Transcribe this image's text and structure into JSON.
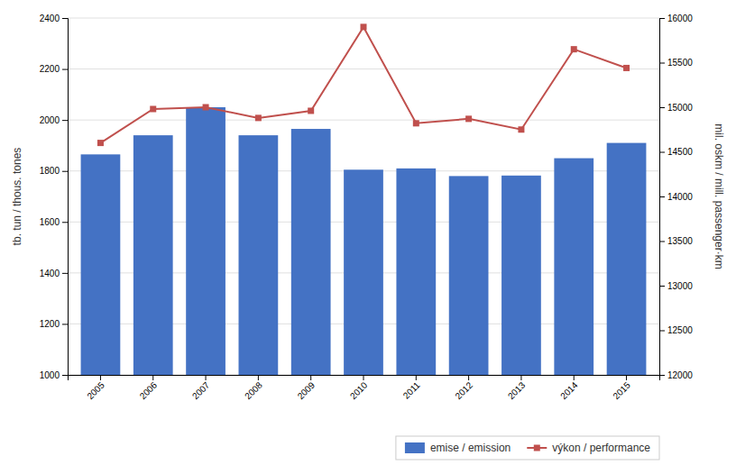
{
  "chart_data": {
    "type": "bar",
    "categories": [
      "2005",
      "2006",
      "2007",
      "2008",
      "2009",
      "2010",
      "2011",
      "2012",
      "2013",
      "2014",
      "2015"
    ],
    "series": [
      {
        "name": "emise / emission",
        "type": "bar",
        "color": "#4472C4",
        "values": [
          1865,
          1940,
          2050,
          1940,
          1965,
          1805,
          1810,
          1780,
          1782,
          1850,
          1910
        ]
      },
      {
        "name": "výkon / performance",
        "type": "line",
        "color": "#C0504D",
        "marker": "square",
        "axis": "y2",
        "values": [
          14600,
          14980,
          15000,
          14880,
          14960,
          15900,
          14820,
          14870,
          14750,
          15650,
          15440
        ]
      }
    ],
    "ylabel": "tb. tun / thous. tones",
    "y2label": "mil. oskm / mill. passenger·km",
    "ylim": [
      1000,
      2400
    ],
    "yticks": [
      1000,
      1200,
      1400,
      1600,
      1800,
      2000,
      2200,
      2400
    ],
    "y2lim": [
      12000,
      16000
    ],
    "y2ticks": [
      12000,
      12500,
      13000,
      13500,
      14000,
      14500,
      15000,
      15500,
      16000
    ],
    "grid": true,
    "legend": "lower right"
  }
}
